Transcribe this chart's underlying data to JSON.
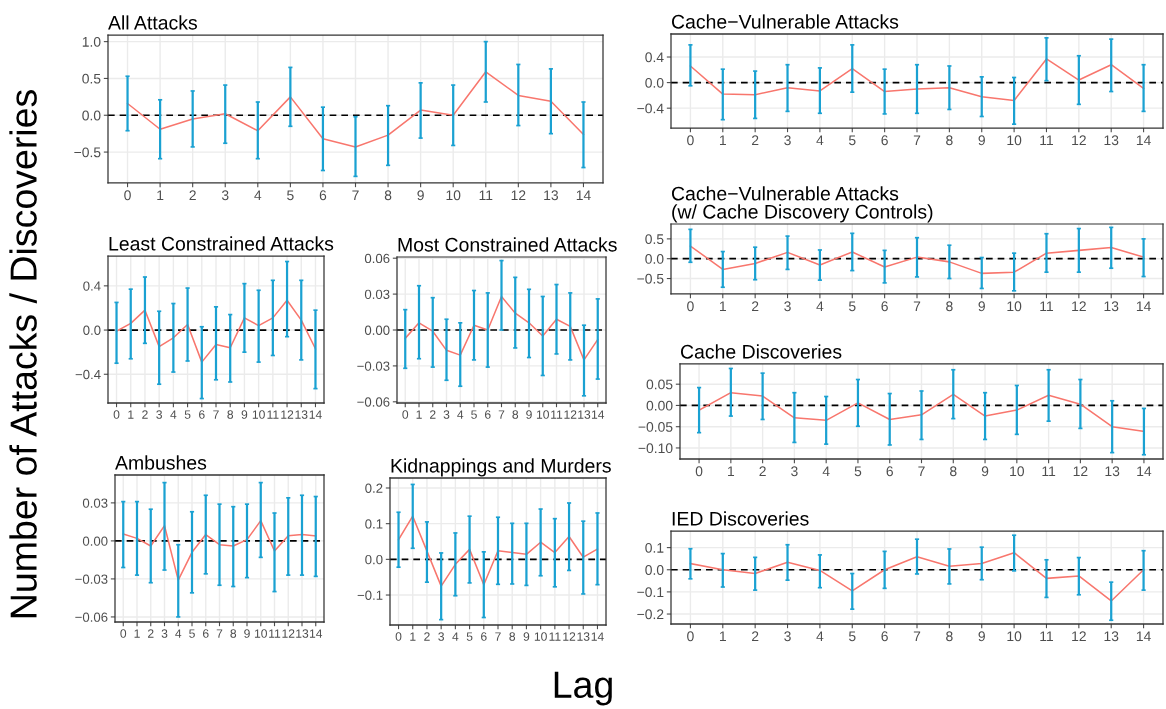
{
  "chart_data": [
    {
      "type": "line",
      "title": "All Attacks",
      "xlabel": "Lag",
      "ylabel": "Number of Attacks / Discoveries",
      "x": [
        0,
        1,
        2,
        3,
        4,
        5,
        6,
        7,
        8,
        9,
        10,
        11,
        12,
        13,
        14
      ],
      "xlim": [
        -0.6,
        14.6
      ],
      "xticks": [
        0,
        1,
        2,
        3,
        4,
        5,
        6,
        7,
        8,
        9,
        10,
        11,
        12,
        13,
        14
      ],
      "ylim": [
        -0.92,
        1.09
      ],
      "yticks": [
        {
          "value": -0.5,
          "label": "−0.5"
        },
        {
          "value": 0,
          "label": "0.0"
        },
        0.5,
        {
          "value": 1,
          "label": "1.0"
        }
      ],
      "grid": true,
      "series": [
        {
          "color": "#f8766d",
          "values": [
            0.16,
            -0.19,
            -0.05,
            0.02,
            -0.21,
            0.25,
            -0.32,
            -0.43,
            -0.27,
            0.07,
            0.0,
            0.59,
            0.27,
            0.19,
            -0.26
          ],
          "errors": [
            [
              -0.21,
              0.53
            ],
            [
              -0.59,
              0.21
            ],
            [
              -0.43,
              0.33
            ],
            [
              -0.38,
              0.41
            ],
            [
              -0.59,
              0.18
            ],
            [
              -0.15,
              0.65
            ],
            [
              -0.75,
              0.11
            ],
            [
              -0.83,
              -0.02
            ],
            [
              -0.68,
              0.13
            ],
            [
              -0.31,
              0.44
            ],
            [
              -0.41,
              0.41
            ],
            [
              0.18,
              1.0
            ],
            [
              -0.14,
              0.69
            ],
            [
              -0.25,
              0.63
            ],
            [
              -0.71,
              0.18
            ]
          ]
        }
      ],
      "ref_lines": [
        {
          "axis": "y",
          "value": 0,
          "color": "#000000",
          "line_style": "dashed"
        }
      ]
    },
    {
      "type": "line",
      "title": "Cache−Vulnerable Attacks",
      "x": [
        0,
        1,
        2,
        3,
        4,
        5,
        6,
        7,
        8,
        9,
        10,
        11,
        12,
        13,
        14
      ],
      "xlim": [
        -0.6,
        14.6
      ],
      "xticks": [
        0,
        1,
        2,
        3,
        4,
        5,
        6,
        7,
        8,
        9,
        10,
        11,
        12,
        13,
        14
      ],
      "ylim": [
        -0.71,
        0.76
      ],
      "yticks": [
        {
          "value": -0.4,
          "label": "−0.4"
        },
        {
          "value": 0,
          "label": "0.0"
        },
        0.4
      ],
      "grid": true,
      "series": [
        {
          "color": "#f8766d",
          "values": [
            0.26,
            -0.18,
            -0.19,
            -0.08,
            -0.13,
            0.22,
            -0.14,
            -0.1,
            -0.08,
            -0.22,
            -0.28,
            0.37,
            0.04,
            0.28,
            -0.09
          ],
          "errors": [
            [
              -0.05,
              0.59
            ],
            [
              -0.58,
              0.21
            ],
            [
              -0.56,
              0.18
            ],
            [
              -0.45,
              0.28
            ],
            [
              -0.48,
              0.23
            ],
            [
              -0.15,
              0.59
            ],
            [
              -0.49,
              0.21
            ],
            [
              -0.48,
              0.28
            ],
            [
              -0.42,
              0.26
            ],
            [
              -0.53,
              0.09
            ],
            [
              -0.65,
              0.08
            ],
            [
              0.03,
              0.7
            ],
            [
              -0.34,
              0.42
            ],
            [
              -0.14,
              0.68
            ],
            [
              -0.45,
              0.28
            ]
          ]
        }
      ],
      "ref_lines": [
        {
          "axis": "y",
          "value": 0,
          "color": "#000000",
          "line_style": "dashed"
        }
      ]
    },
    {
      "type": "line",
      "title": "Cache−Vulnerable Attacks\n(w/ Cache Discovery Controls)",
      "x": [
        0,
        1,
        2,
        3,
        4,
        5,
        6,
        7,
        8,
        9,
        10,
        11,
        12,
        13,
        14
      ],
      "xlim": [
        -0.6,
        14.6
      ],
      "xticks": [
        0,
        1,
        2,
        3,
        4,
        5,
        6,
        7,
        8,
        9,
        10,
        11,
        12,
        13,
        14
      ],
      "ylim": [
        -0.89,
        0.875
      ],
      "yticks": [
        {
          "value": -0.5,
          "label": "−0.5"
        },
        {
          "value": 0,
          "label": "0.0"
        },
        0.5
      ],
      "grid": true,
      "series": [
        {
          "color": "#f8766d",
          "values": [
            0.32,
            -0.27,
            -0.12,
            0.16,
            -0.16,
            0.17,
            -0.21,
            0.04,
            -0.08,
            -0.37,
            -0.34,
            0.14,
            0.21,
            0.28,
            0.04
          ],
          "errors": [
            [
              -0.09,
              0.74
            ],
            [
              -0.72,
              0.18
            ],
            [
              -0.53,
              0.29
            ],
            [
              -0.27,
              0.57
            ],
            [
              -0.54,
              0.22
            ],
            [
              -0.3,
              0.64
            ],
            [
              -0.61,
              0.21
            ],
            [
              -0.46,
              0.53
            ],
            [
              -0.5,
              0.34
            ],
            [
              -0.75,
              0.03
            ],
            [
              -0.81,
              0.14
            ],
            [
              -0.34,
              0.63
            ],
            [
              -0.34,
              0.76
            ],
            [
              -0.24,
              0.79
            ],
            [
              -0.45,
              0.5
            ]
          ]
        }
      ],
      "ref_lines": [
        {
          "axis": "y",
          "value": 0,
          "color": "#000000",
          "line_style": "dashed"
        }
      ]
    },
    {
      "type": "line",
      "title": "Least Constrained Attacks",
      "x": [
        0,
        1,
        2,
        3,
        4,
        5,
        6,
        7,
        8,
        9,
        10,
        11,
        12,
        13,
        14
      ],
      "xlim": [
        -0.6,
        14.6
      ],
      "xticks": [
        0,
        1,
        2,
        3,
        4,
        5,
        6,
        7,
        8,
        9,
        10,
        11,
        12,
        13,
        14
      ],
      "ylim": [
        -0.66,
        0.67
      ],
      "yticks": [
        {
          "value": -0.4,
          "label": "−0.4"
        },
        {
          "value": 0,
          "label": "0.0"
        },
        0.4
      ],
      "grid": true,
      "series": [
        {
          "color": "#f8766d",
          "values": [
            -0.01,
            0.06,
            0.18,
            -0.15,
            -0.07,
            0.05,
            -0.29,
            -0.13,
            -0.16,
            0.11,
            0.04,
            0.11,
            0.27,
            0.09,
            -0.17
          ],
          "errors": [
            [
              -0.3,
              0.25
            ],
            [
              -0.26,
              0.37
            ],
            [
              -0.12,
              0.48
            ],
            [
              -0.49,
              0.17
            ],
            [
              -0.38,
              0.24
            ],
            [
              -0.28,
              0.38
            ],
            [
              -0.62,
              0.03
            ],
            [
              -0.45,
              0.21
            ],
            [
              -0.47,
              0.14
            ],
            [
              -0.2,
              0.42
            ],
            [
              -0.29,
              0.36
            ],
            [
              -0.23,
              0.45
            ],
            [
              -0.06,
              0.62
            ],
            [
              -0.27,
              0.45
            ],
            [
              -0.53,
              0.18
            ]
          ]
        }
      ],
      "ref_lines": [
        {
          "axis": "y",
          "value": 0,
          "color": "#000000",
          "line_style": "dashed"
        }
      ]
    },
    {
      "type": "line",
      "title": "Most Constrained Attacks",
      "x": [
        0,
        1,
        2,
        3,
        4,
        5,
        6,
        7,
        8,
        9,
        10,
        11,
        12,
        13,
        14
      ],
      "xlim": [
        -0.6,
        14.6
      ],
      "xticks": [
        0,
        1,
        2,
        3,
        4,
        5,
        6,
        7,
        8,
        9,
        10,
        11,
        12,
        13,
        14
      ],
      "ylim": [
        -0.061,
        0.061
      ],
      "yticks": [
        {
          "value": -0.06,
          "label": "−0.06"
        },
        {
          "value": -0.03,
          "label": "−0.03"
        },
        {
          "value": 0.0,
          "label": "0.00"
        },
        {
          "value": 0.03,
          "label": "0.03"
        },
        {
          "value": 0.06,
          "label": "0.06"
        }
      ],
      "grid": true,
      "series": [
        {
          "color": "#f8766d",
          "values": [
            -0.007,
            0.006,
            -0.001,
            -0.017,
            -0.021,
            0.004,
            0.0,
            0.028,
            0.014,
            0.006,
            -0.005,
            0.009,
            0.003,
            -0.025,
            -0.008
          ],
          "errors": [
            [
              -0.032,
              0.017
            ],
            [
              -0.024,
              0.037
            ],
            [
              -0.031,
              0.027
            ],
            [
              -0.042,
              0.009
            ],
            [
              -0.047,
              0.006
            ],
            [
              -0.025,
              0.033
            ],
            [
              -0.031,
              0.031
            ],
            [
              0.0,
              0.058
            ],
            [
              -0.015,
              0.044
            ],
            [
              -0.023,
              0.034
            ],
            [
              -0.038,
              0.028
            ],
            [
              -0.02,
              0.038
            ],
            [
              -0.025,
              0.031
            ],
            [
              -0.055,
              0.004
            ],
            [
              -0.041,
              0.026
            ]
          ]
        }
      ],
      "ref_lines": [
        {
          "axis": "y",
          "value": 0,
          "color": "#000000",
          "line_style": "dashed"
        }
      ]
    },
    {
      "type": "line",
      "title": "Cache Discoveries",
      "x": [
        0,
        1,
        2,
        3,
        4,
        5,
        6,
        7,
        8,
        9,
        10,
        11,
        12,
        13,
        14
      ],
      "xlim": [
        -0.6,
        14.6
      ],
      "xticks": [
        0,
        1,
        2,
        3,
        4,
        5,
        6,
        7,
        8,
        9,
        10,
        11,
        12,
        13,
        14
      ],
      "ylim": [
        -0.126,
        0.0975
      ],
      "yticks": [
        {
          "value": -0.1,
          "label": "−0.10"
        },
        {
          "value": -0.05,
          "label": "−0.05"
        },
        {
          "value": 0.0,
          "label": "0.00"
        },
        {
          "value": 0.05,
          "label": "0.05"
        }
      ],
      "grid": true,
      "series": [
        {
          "color": "#f8766d",
          "values": [
            -0.011,
            0.03,
            0.022,
            -0.029,
            -0.035,
            0.006,
            -0.033,
            -0.022,
            0.026,
            -0.025,
            -0.011,
            0.024,
            0.003,
            -0.05,
            -0.061
          ],
          "errors": [
            [
              -0.064,
              0.042
            ],
            [
              -0.025,
              0.087
            ],
            [
              -0.033,
              0.076
            ],
            [
              -0.087,
              0.03
            ],
            [
              -0.091,
              0.021
            ],
            [
              -0.049,
              0.061
            ],
            [
              -0.093,
              0.028
            ],
            [
              -0.08,
              0.034
            ],
            [
              -0.031,
              0.084
            ],
            [
              -0.08,
              0.03
            ],
            [
              -0.068,
              0.047
            ],
            [
              -0.037,
              0.084
            ],
            [
              -0.054,
              0.061
            ],
            [
              -0.111,
              0.011
            ],
            [
              -0.116,
              -0.007
            ]
          ]
        }
      ],
      "ref_lines": [
        {
          "axis": "y",
          "value": 0,
          "color": "#000000",
          "line_style": "dashed"
        }
      ]
    },
    {
      "type": "line",
      "title": "Ambushes",
      "x": [
        0,
        1,
        2,
        3,
        4,
        5,
        6,
        7,
        8,
        9,
        10,
        11,
        12,
        13,
        14
      ],
      "xlim": [
        -0.6,
        14.6
      ],
      "xticks": [
        0,
        1,
        2,
        3,
        4,
        5,
        6,
        7,
        8,
        9,
        10,
        11,
        12,
        13,
        14
      ],
      "ylim": [
        -0.064,
        0.052
      ],
      "yticks": [
        {
          "value": -0.06,
          "label": "−0.06"
        },
        {
          "value": -0.03,
          "label": "−0.03"
        },
        {
          "value": 0.0,
          "label": "0.00"
        },
        {
          "value": 0.03,
          "label": "0.03"
        }
      ],
      "grid": true,
      "series": [
        {
          "color": "#f8766d",
          "values": [
            0.0055,
            0.002,
            -0.004,
            0.012,
            -0.031,
            -0.009,
            0.005,
            -0.003,
            -0.004,
            0.001,
            0.016,
            -0.008,
            0.004,
            0.005,
            0.004
          ],
          "errors": [
            [
              -0.021,
              0.031
            ],
            [
              -0.027,
              0.031
            ],
            [
              -0.033,
              0.025
            ],
            [
              -0.023,
              0.046
            ],
            [
              -0.06,
              -0.003
            ],
            [
              -0.041,
              0.023
            ],
            [
              -0.026,
              0.036
            ],
            [
              -0.035,
              0.029
            ],
            [
              -0.036,
              0.027
            ],
            [
              -0.029,
              0.029
            ],
            [
              -0.013,
              0.046
            ],
            [
              -0.04,
              0.022
            ],
            [
              -0.027,
              0.034
            ],
            [
              -0.027,
              0.036
            ],
            [
              -0.028,
              0.035
            ]
          ]
        }
      ],
      "ref_lines": [
        {
          "axis": "y",
          "value": 0,
          "color": "#000000",
          "line_style": "dashed"
        }
      ]
    },
    {
      "type": "line",
      "title": "Kidnappings and Murders",
      "x": [
        0,
        1,
        2,
        3,
        4,
        5,
        6,
        7,
        8,
        9,
        10,
        11,
        12,
        13,
        14
      ],
      "xlim": [
        -0.6,
        14.6
      ],
      "xticks": [
        0,
        1,
        2,
        3,
        4,
        5,
        6,
        7,
        8,
        9,
        10,
        11,
        12,
        13,
        14
      ],
      "ylim": [
        -0.184,
        0.228
      ],
      "yticks": [
        {
          "value": -0.1,
          "label": "−0.1"
        },
        {
          "value": 0,
          "label": "0.0"
        },
        0.1,
        0.2
      ],
      "grid": true,
      "series": [
        {
          "color": "#f8766d",
          "values": [
            0.055,
            0.121,
            0.023,
            -0.075,
            -0.014,
            0.028,
            -0.071,
            0.024,
            0.019,
            0.014,
            0.048,
            0.019,
            0.064,
            0.006,
            0.029
          ],
          "errors": [
            [
              -0.022,
              0.132
            ],
            [
              0.031,
              0.21
            ],
            [
              -0.064,
              0.105
            ],
            [
              -0.169,
              0.018
            ],
            [
              -0.102,
              0.074
            ],
            [
              -0.066,
              0.121
            ],
            [
              -0.163,
              0.021
            ],
            [
              -0.07,
              0.118
            ],
            [
              -0.069,
              0.101
            ],
            [
              -0.073,
              0.101
            ],
            [
              -0.046,
              0.141
            ],
            [
              -0.077,
              0.114
            ],
            [
              -0.031,
              0.158
            ],
            [
              -0.097,
              0.107
            ],
            [
              -0.071,
              0.13
            ]
          ]
        }
      ],
      "ref_lines": [
        {
          "axis": "y",
          "value": 0,
          "color": "#000000",
          "line_style": "dashed"
        }
      ]
    },
    {
      "type": "line",
      "title": "IED Discoveries",
      "x": [
        0,
        1,
        2,
        3,
        4,
        5,
        6,
        7,
        8,
        9,
        10,
        11,
        12,
        13,
        14
      ],
      "xlim": [
        -0.6,
        14.6
      ],
      "xticks": [
        0,
        1,
        2,
        3,
        4,
        5,
        6,
        7,
        8,
        9,
        10,
        11,
        12,
        13,
        14
      ],
      "ylim": [
        -0.245,
        0.175
      ],
      "yticks": [
        {
          "value": -0.2,
          "label": "−0.2"
        },
        {
          "value": -0.1,
          "label": "−0.1"
        },
        {
          "value": 0,
          "label": "0.0"
        },
        0.1
      ],
      "grid": true,
      "series": [
        {
          "color": "#f8766d",
          "values": [
            0.028,
            0.0,
            -0.017,
            0.034,
            -0.003,
            -0.095,
            0.0,
            0.059,
            0.016,
            0.028,
            0.077,
            -0.039,
            -0.028,
            -0.141,
            0.0
          ],
          "errors": [
            [
              -0.041,
              0.095
            ],
            [
              -0.078,
              0.073
            ],
            [
              -0.092,
              0.056
            ],
            [
              -0.047,
              0.113
            ],
            [
              -0.081,
              0.067
            ],
            [
              -0.178,
              -0.017
            ],
            [
              -0.084,
              0.083
            ],
            [
              -0.019,
              0.138
            ],
            [
              -0.064,
              0.094
            ],
            [
              -0.045,
              0.102
            ],
            [
              -0.005,
              0.156
            ],
            [
              -0.125,
              0.045
            ],
            [
              -0.113,
              0.055
            ],
            [
              -0.228,
              -0.056
            ],
            [
              -0.092,
              0.086
            ]
          ]
        }
      ],
      "ref_lines": [
        {
          "axis": "y",
          "value": 0,
          "color": "#000000",
          "line_style": "dashed"
        }
      ]
    }
  ]
}
